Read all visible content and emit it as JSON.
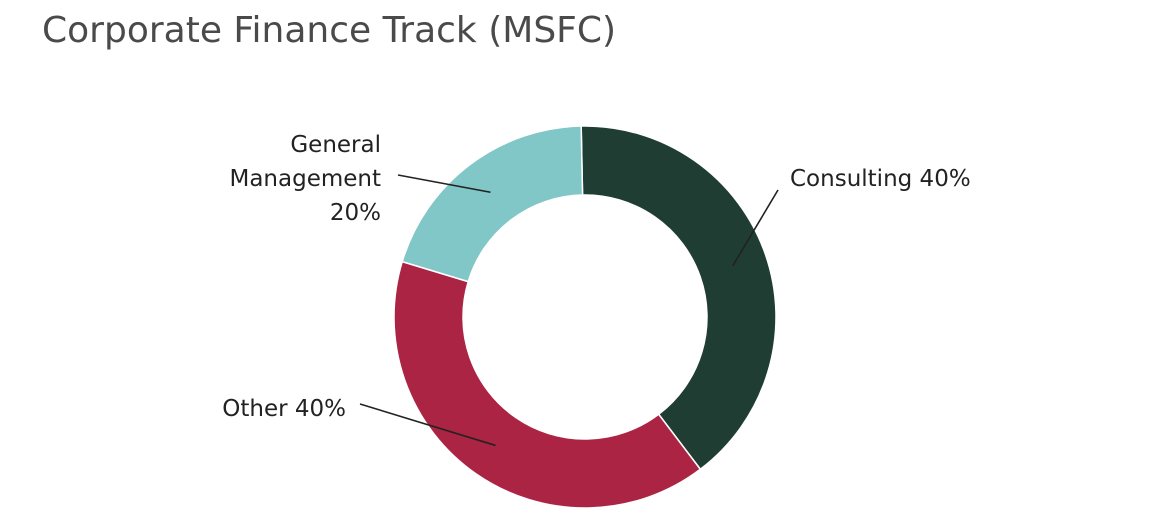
{
  "chart_data": {
    "type": "pie",
    "title": "Corporate Finance Track (MSFC)",
    "slices": [
      {
        "label_lines": [
          "Consulting 40%"
        ],
        "category": "Consulting",
        "value": 40,
        "color": "#1f3d33"
      },
      {
        "label_lines": [
          "Other 40%"
        ],
        "category": "Other",
        "value": 40,
        "color": "#ab2444"
      },
      {
        "label_lines": [
          "General",
          "Management",
          "20%"
        ],
        "category": "General Management",
        "value": 20,
        "color": "#82c7c7"
      }
    ],
    "values_unit": "%",
    "legend": "none",
    "donut": true
  }
}
